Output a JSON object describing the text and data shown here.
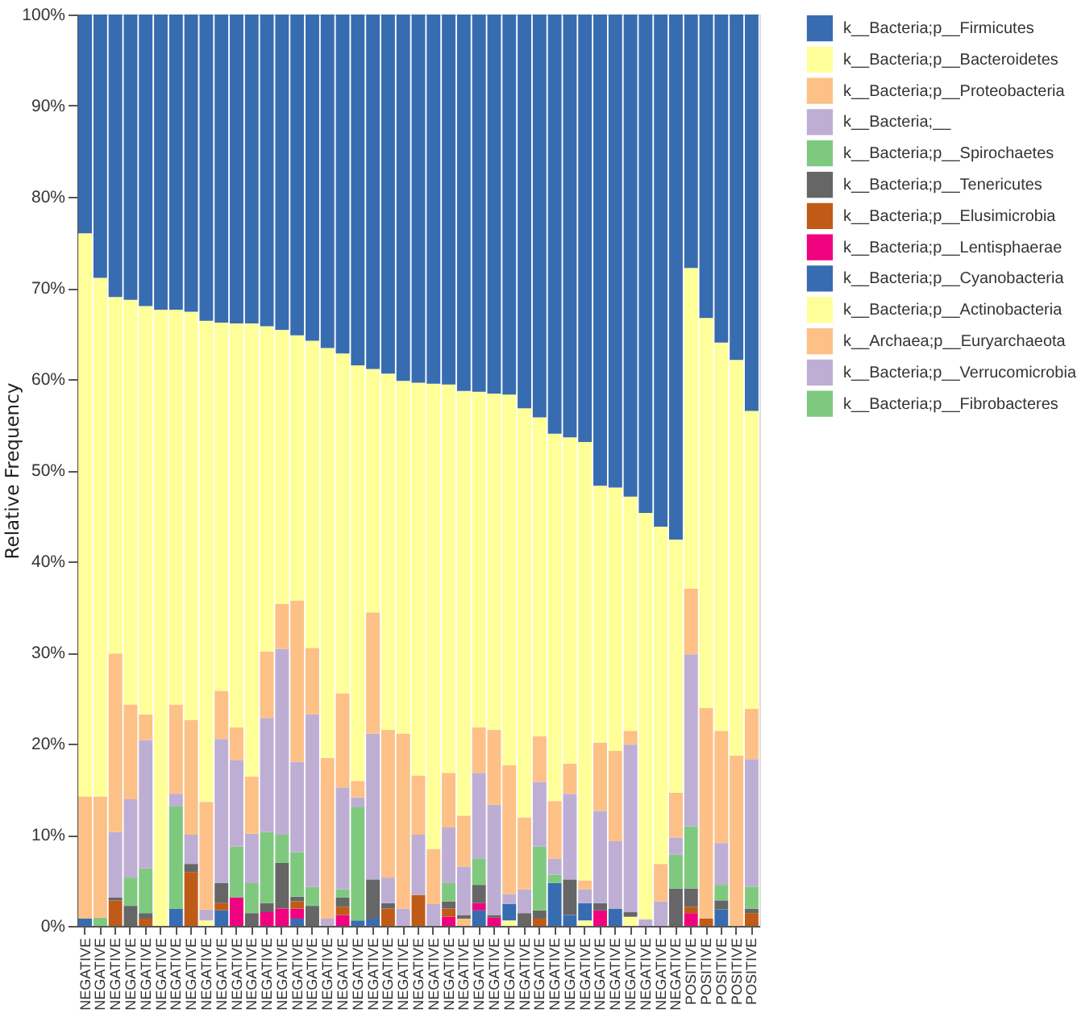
{
  "chart_data": {
    "type": "bar",
    "stacked": true,
    "ylabel": "Relative Frequency",
    "legend": "right",
    "categories": [
      "NEGATIVE",
      "NEGATIVE",
      "NEGATIVE",
      "NEGATIVE",
      "NEGATIVE",
      "NEGATIVE",
      "NEGATIVE",
      "NEGATIVE",
      "NEGATIVE",
      "NEGATIVE",
      "NEGATIVE",
      "NEGATIVE",
      "NEGATIVE",
      "NEGATIVE",
      "NEGATIVE",
      "NEGATIVE",
      "NEGATIVE",
      "NEGATIVE",
      "NEGATIVE",
      "NEGATIVE",
      "NEGATIVE",
      "NEGATIVE",
      "NEGATIVE",
      "NEGATIVE",
      "NEGATIVE",
      "NEGATIVE",
      "NEGATIVE",
      "NEGATIVE",
      "NEGATIVE",
      "NEGATIVE",
      "NEGATIVE",
      "NEGATIVE",
      "NEGATIVE",
      "NEGATIVE",
      "NEGATIVE",
      "NEGATIVE",
      "NEGATIVE",
      "NEGATIVE",
      "NEGATIVE",
      "NEGATIVE",
      "POSITIVE",
      "POSITIVE",
      "POSITIVE",
      "POSITIVE",
      "POSITIVE"
    ],
    "ylim": [
      0,
      100
    ],
    "yticks": [
      {
        "value": 0,
        "label": "0%"
      },
      {
        "value": 10,
        "label": "10%"
      },
      {
        "value": 20,
        "label": "20%"
      },
      {
        "value": 30,
        "label": "30%"
      },
      {
        "value": 40,
        "label": "40%"
      },
      {
        "value": 50,
        "label": "50%"
      },
      {
        "value": 60,
        "label": "60%"
      },
      {
        "value": 70,
        "label": "70%"
      },
      {
        "value": 80,
        "label": "80%"
      },
      {
        "value": 90,
        "label": "90%"
      },
      {
        "value": 100,
        "label": "100%"
      }
    ],
    "series": [
      {
        "name": "k__Bacteria;p__Fibrobacteres",
        "color": "#7fc97f",
        "values": [
          null,
          null,
          null,
          null,
          null,
          null,
          null,
          null,
          null,
          null,
          null,
          null,
          null,
          null,
          null,
          null,
          null,
          null,
          null,
          null,
          null,
          null,
          null,
          null,
          null,
          null,
          null,
          null,
          null,
          null,
          null,
          null,
          null,
          null,
          null,
          null,
          null,
          null,
          null,
          null,
          null,
          null,
          null,
          null,
          null
        ]
      },
      {
        "name": "k__Bacteria;p__Verrucomicrobia",
        "color": "#beaed4",
        "values": [
          null,
          null,
          null,
          null,
          null,
          null,
          null,
          null,
          null,
          null,
          null,
          null,
          null,
          null,
          null,
          null,
          null,
          null,
          null,
          null,
          null,
          null,
          null,
          null,
          null,
          null,
          null,
          null,
          null,
          null,
          null,
          null,
          null,
          null,
          null,
          null,
          null,
          null,
          null,
          null,
          null,
          null,
          null,
          null,
          null
        ]
      },
      {
        "name": "k__Archaea;p__Euryarchaeota",
        "color": "#fdc086",
        "values": [
          null,
          null,
          null,
          null,
          null,
          null,
          null,
          null,
          null,
          null,
          null,
          null,
          null,
          null,
          null,
          null,
          null,
          null,
          null,
          null,
          null,
          null,
          null,
          null,
          null,
          0.8,
          null,
          null,
          null,
          null,
          null,
          null,
          null,
          null,
          null,
          null,
          null,
          null,
          null,
          null,
          null,
          null,
          null,
          null,
          null
        ]
      },
      {
        "name": "k__Bacteria;p__Actinobacteria",
        "color": "#ffff99",
        "values": [
          null,
          null,
          null,
          null,
          null,
          null,
          null,
          null,
          0.6,
          null,
          null,
          null,
          null,
          null,
          null,
          null,
          null,
          null,
          null,
          null,
          null,
          null,
          null,
          null,
          null,
          null,
          null,
          null,
          0.6,
          null,
          null,
          null,
          null,
          0.6,
          null,
          null,
          1.0,
          null,
          null,
          null,
          null,
          null,
          null,
          null,
          null
        ]
      },
      {
        "name": "k__Bacteria;p__Cyanobacteria",
        "color": "#386cb0",
        "values": [
          0.8,
          null,
          null,
          null,
          null,
          null,
          1.9,
          null,
          null,
          1.7,
          null,
          null,
          null,
          null,
          0.8,
          null,
          null,
          null,
          0.6,
          0.8,
          null,
          null,
          null,
          null,
          null,
          null,
          1.7,
          null,
          1.8,
          null,
          null,
          4.7,
          1.2,
          1.9,
          null,
          1.9,
          null,
          null,
          null,
          null,
          null,
          null,
          1.8,
          null,
          null
        ]
      },
      {
        "name": "k__Bacteria;p__Lentisphaerae",
        "color": "#f0027f",
        "values": [
          null,
          null,
          null,
          null,
          null,
          null,
          null,
          null,
          null,
          null,
          3.1,
          null,
          1.5,
          1.9,
          1.1,
          null,
          null,
          1.2,
          null,
          null,
          null,
          null,
          null,
          null,
          1.0,
          null,
          0.8,
          0.9,
          null,
          null,
          null,
          null,
          null,
          null,
          1.7,
          null,
          null,
          null,
          null,
          null,
          1.4,
          null,
          null,
          null,
          null
        ]
      },
      {
        "name": "k__Bacteria;p__Elusimicrobia",
        "color": "#bf5b17",
        "values": [
          null,
          null,
          2.8,
          null,
          0.8,
          null,
          null,
          5.9,
          null,
          0.8,
          null,
          null,
          null,
          null,
          0.8,
          null,
          null,
          0.9,
          null,
          null,
          1.9,
          null,
          3.4,
          null,
          0.9,
          null,
          null,
          null,
          null,
          null,
          0.8,
          null,
          null,
          null,
          null,
          null,
          null,
          null,
          null,
          null,
          0.7,
          0.8,
          null,
          null,
          1.4
        ]
      },
      {
        "name": "k__Bacteria;p__Tenericutes",
        "color": "#666666",
        "values": [
          null,
          null,
          0.3,
          2.2,
          0.6,
          null,
          null,
          0.9,
          null,
          2.2,
          null,
          1.4,
          1.0,
          5.0,
          0.5,
          2.2,
          null,
          1.0,
          null,
          4.3,
          0.6,
          null,
          null,
          null,
          0.8,
          0.4,
          2.0,
          0.3,
          null,
          1.4,
          0.9,
          null,
          3.9,
          null,
          0.8,
          null,
          0.5,
          null,
          null,
          4.1,
          2.0,
          null,
          1.0,
          null,
          0.5
        ]
      },
      {
        "name": "k__Bacteria;p__Spirochaetes",
        "color": "#7fc97f",
        "values": [
          null,
          0.9,
          null,
          3.1,
          4.9,
          null,
          11.2,
          null,
          null,
          null,
          5.6,
          3.3,
          7.8,
          3.1,
          4.9,
          2.1,
          null,
          0.9,
          12.4,
          null,
          null,
          null,
          null,
          null,
          2.0,
          null,
          2.9,
          null,
          null,
          null,
          7.0,
          0.9,
          null,
          null,
          null,
          null,
          null,
          null,
          null,
          3.7,
          6.8,
          null,
          1.7,
          null,
          2.4
        ]
      },
      {
        "name": "k__Bacteria;__",
        "color": "#beaed4",
        "values": [
          null,
          null,
          7.2,
          8.6,
          14.1,
          null,
          1.4,
          3.2,
          1.2,
          15.8,
          9.5,
          5.4,
          12.5,
          20.4,
          9.9,
          18.9,
          0.8,
          11.2,
          1.1,
          16.0,
          2.8,
          1.9,
          6.6,
          2.4,
          6.1,
          5.3,
          9.4,
          12.1,
          1.1,
          2.6,
          7.1,
          1.8,
          9.4,
          1.5,
          10.1,
          7.4,
          18.4,
          0.7,
          2.7,
          1.9,
          18.9,
          null,
          4.6,
          null,
          14.0
        ]
      },
      {
        "name": "k__Bacteria;p__Proteobacteria",
        "color": "#fdc086",
        "values": [
          13.4,
          13.3,
          19.6,
          10.4,
          2.8,
          null,
          9.8,
          12.6,
          11.8,
          5.3,
          3.6,
          6.3,
          7.3,
          4.9,
          17.7,
          7.3,
          17.6,
          10.3,
          1.8,
          13.3,
          16.2,
          19.2,
          6.5,
          6.0,
          6.0,
          5.6,
          5.0,
          8.2,
          14.1,
          7.9,
          5.0,
          6.3,
          3.3,
          1.0,
          7.5,
          9.9,
          1.5,
          null,
          4.1,
          4.9,
          7.2,
          23.1,
          12.3,
          18.7,
          5.5
        ]
      },
      {
        "name": "k__Bacteria;p__Bacteroidetes",
        "color": "#ffff99",
        "values": [
          61.8,
          56.9,
          39.1,
          44.4,
          44.8,
          67.6,
          43.3,
          44.8,
          52.8,
          40.4,
          44.3,
          49.7,
          35.7,
          30.1,
          29.1,
          33.7,
          45.0,
          37.3,
          45.6,
          26.7,
          39.1,
          38.7,
          43.1,
          51.1,
          42.6,
          46.6,
          36.8,
          36.9,
          40.7,
          44.9,
          35.0,
          40.3,
          35.8,
          48.1,
          28.2,
          28.9,
          25.7,
          44.6,
          37.0,
          27.8,
          35.2,
          42.8,
          42.6,
          43.4,
          32.7
        ]
      },
      {
        "name": "k__Bacteria;p__Firmicutes",
        "color": "#386cb0",
        "values": [
          24.0,
          28.9,
          31.0,
          31.3,
          32.0,
          32.4,
          32.4,
          32.6,
          33.6,
          33.8,
          33.9,
          33.9,
          34.2,
          34.6,
          35.2,
          35.8,
          36.6,
          37.2,
          38.5,
          38.9,
          39.4,
          40.2,
          40.4,
          40.5,
          40.6,
          41.3,
          41.4,
          41.6,
          41.7,
          43.2,
          44.2,
          46.0,
          46.4,
          46.9,
          51.7,
          51.9,
          52.9,
          54.7,
          56.2,
          57.6,
          27.8,
          33.3,
          36.0,
          37.9,
          43.5
        ]
      }
    ]
  }
}
